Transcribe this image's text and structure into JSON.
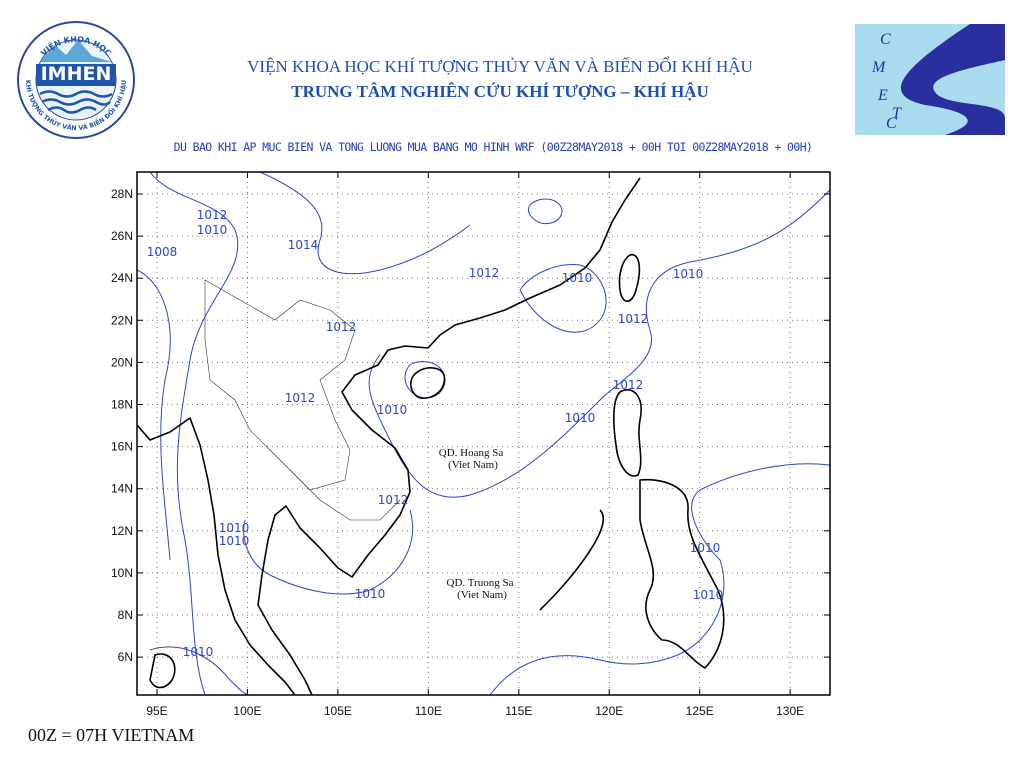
{
  "header": {
    "institute": "VIỆN KHOA HỌC KHÍ TƯỢNG THỦY VĂN VÀ BIẾN ĐỔI KHÍ HẬU",
    "center": "TRUNG TÂM NGHIÊN CỨU KHÍ TƯỢNG – KHÍ HẬU"
  },
  "logo_left": {
    "ring_top": "VIỆN KHOA HỌC",
    "name": "IMHEN",
    "ring_bottom": "KHÍ TƯỢNG THỦY VĂN VÀ BIẾN ĐỔI KHÍ HẬU"
  },
  "logo_right": {
    "letters": [
      "C",
      "M",
      "E",
      "T",
      "C"
    ]
  },
  "subtitle": "DU BAO KHI AP MUC BIEN VA TONG LUONG MUA BANG MO HINH WRF (00Z28MAY2018 + 00H TOI 00Z28MAY2018 + 00H)",
  "map": {
    "lat_labels": [
      "28N",
      "26N",
      "24N",
      "22N",
      "20N",
      "18N",
      "16N",
      "14N",
      "12N",
      "10N",
      "8N",
      "6N"
    ],
    "lon_labels": [
      "95E",
      "100E",
      "105E",
      "110E",
      "115E",
      "120E",
      "125E",
      "130E"
    ],
    "contour_labels": [
      "1012",
      "1010",
      "1008",
      "1014",
      "1012",
      "1010",
      "1010",
      "1012",
      "1012",
      "1012",
      "1010",
      "1010",
      "1012",
      "1012",
      "1010",
      "1010",
      "1010",
      "1010",
      "1010",
      "1010"
    ],
    "places": [
      {
        "name": "QD. Hoang Sa",
        "note": "(Viet Nam)"
      },
      {
        "name": "QD. Truong Sa",
        "note": "(Viet Nam)"
      }
    ]
  },
  "footer": "00Z = 07H VIETNAM"
}
